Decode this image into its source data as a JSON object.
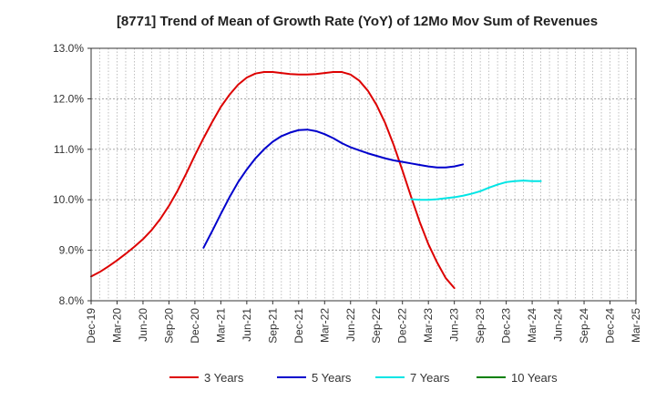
{
  "chart_data": {
    "type": "line",
    "title": "[8771]  Trend of Mean of Growth Rate (YoY) of 12Mo Mov Sum of Revenues",
    "xlabel": "",
    "ylabel": "",
    "ylim": [
      8.0,
      13.0
    ],
    "y_ticks": [
      8.0,
      9.0,
      10.0,
      11.0,
      12.0,
      13.0
    ],
    "y_tick_labels": [
      "8.0%",
      "9.0%",
      "10.0%",
      "11.0%",
      "12.0%",
      "13.0%"
    ],
    "x_tick_labels": [
      "Dec-19",
      "Mar-20",
      "Jun-20",
      "Sep-20",
      "Dec-20",
      "Mar-21",
      "Jun-21",
      "Sep-21",
      "Dec-21",
      "Mar-22",
      "Jun-22",
      "Sep-22",
      "Dec-22",
      "Mar-23",
      "Jun-23",
      "Sep-23",
      "Dec-23",
      "Mar-24",
      "Jun-24",
      "Sep-24",
      "Dec-24",
      "Mar-25"
    ],
    "grid": true,
    "legend_position": "bottom",
    "series": [
      {
        "name": "3 Years",
        "color": "#dd0000",
        "start_index": 0,
        "values": [
          8.48,
          8.57,
          8.68,
          8.8,
          8.93,
          9.07,
          9.22,
          9.4,
          9.62,
          9.88,
          10.18,
          10.52,
          10.88,
          11.22,
          11.54,
          11.84,
          12.08,
          12.28,
          12.42,
          12.5,
          12.53,
          12.53,
          12.51,
          12.49,
          12.48,
          12.48,
          12.49,
          12.51,
          12.53,
          12.53,
          12.48,
          12.36,
          12.16,
          11.88,
          11.52,
          11.08,
          10.58,
          10.06,
          9.56,
          9.12,
          8.76,
          8.45,
          8.25
        ]
      },
      {
        "name": "5 Years",
        "color": "#0000cc",
        "start_index": 13,
        "values": [
          9.05,
          9.38,
          9.72,
          10.05,
          10.35,
          10.6,
          10.82,
          11.0,
          11.15,
          11.26,
          11.33,
          11.38,
          11.39,
          11.36,
          11.3,
          11.22,
          11.12,
          11.04,
          10.98,
          10.92,
          10.87,
          10.82,
          10.78,
          10.75,
          10.72,
          10.69,
          10.66,
          10.64,
          10.64,
          10.66,
          10.7
        ]
      },
      {
        "name": "7 Years",
        "color": "#00e5e5",
        "start_index": 37,
        "values": [
          10.01,
          10.0,
          10.0,
          10.01,
          10.03,
          10.05,
          10.08,
          10.12,
          10.17,
          10.24,
          10.3,
          10.35,
          10.37,
          10.38,
          10.37,
          10.37
        ]
      },
      {
        "name": "10 Years",
        "color": "#008000",
        "start_index": 0,
        "values": []
      }
    ]
  }
}
